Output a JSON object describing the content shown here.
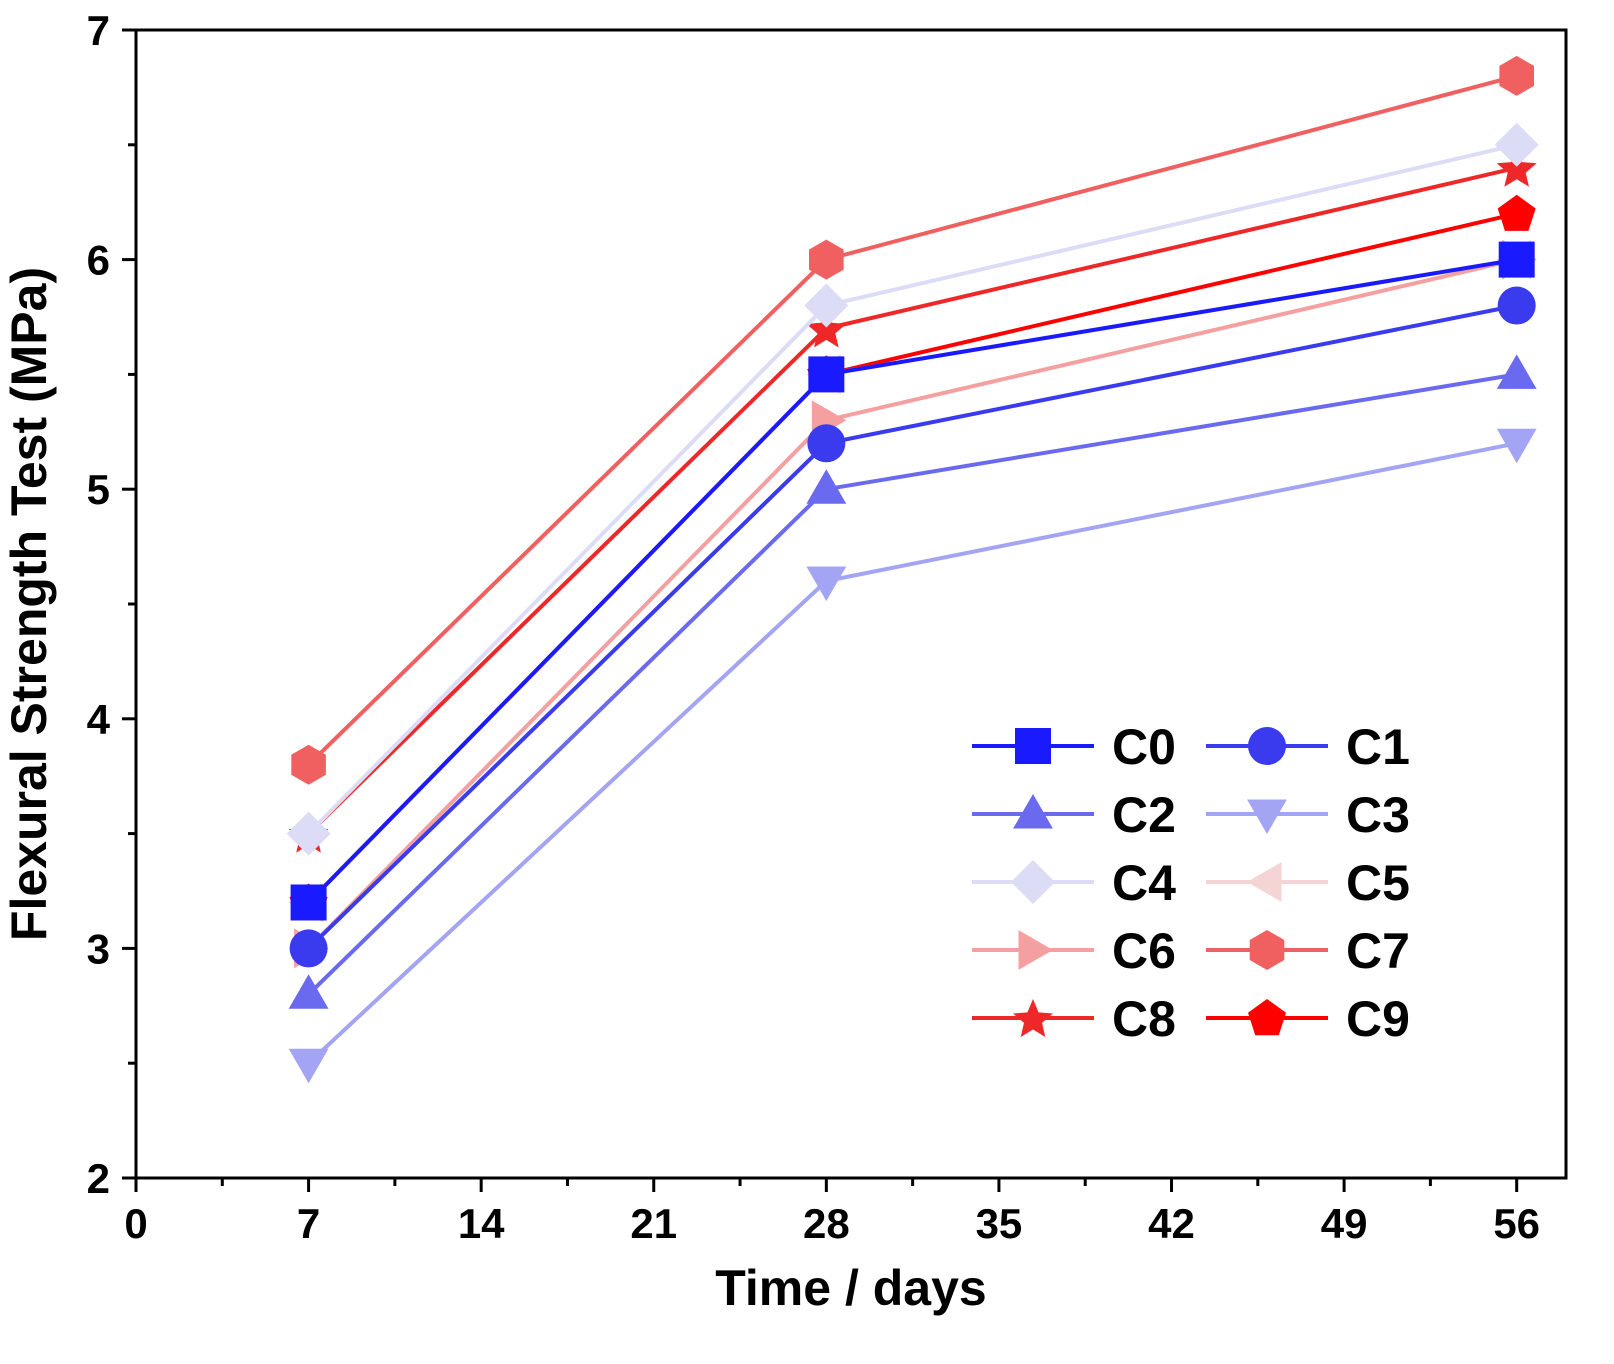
{
  "chart_data": {
    "type": "line",
    "xlabel": "Time / days",
    "ylabel": "Flexural Strength Test (MPa)",
    "xlim": [
      0,
      58
    ],
    "ylim": [
      2,
      7
    ],
    "xticks": [
      0,
      7,
      14,
      21,
      28,
      35,
      42,
      49,
      56
    ],
    "yticks": [
      2,
      3,
      4,
      5,
      6,
      7
    ],
    "xtick_labels": [
      "0",
      "7",
      "14",
      "21",
      "28",
      "35",
      "42",
      "49",
      "56"
    ],
    "ytick_labels": [
      "2",
      "3",
      "4",
      "5",
      "6",
      "7"
    ],
    "x": [
      7,
      28,
      56
    ],
    "legend_position": "lower-right",
    "grid": false,
    "series": [
      {
        "name": "C0",
        "values": [
          3.2,
          5.5,
          6.0
        ],
        "color": "#1a1aff",
        "marker": "square"
      },
      {
        "name": "C1",
        "values": [
          3.0,
          5.2,
          5.8
        ],
        "color": "#3a3aee",
        "marker": "circle"
      },
      {
        "name": "C2",
        "values": [
          2.8,
          5.0,
          5.5
        ],
        "color": "#6a6af0",
        "marker": "triangle-up"
      },
      {
        "name": "C3",
        "values": [
          2.5,
          4.6,
          5.2
        ],
        "color": "#a4a4f4",
        "marker": "triangle-down"
      },
      {
        "name": "C4",
        "values": [
          3.5,
          5.8,
          6.5
        ],
        "color": "#dcdcf6",
        "marker": "diamond"
      },
      {
        "name": "C5",
        "values": [
          3.2,
          5.5,
          6.0
        ],
        "color": "#f4d4d4",
        "marker": "triangle-left"
      },
      {
        "name": "C6",
        "values": [
          3.0,
          5.3,
          6.0
        ],
        "color": "#f5a0a0",
        "marker": "triangle-right"
      },
      {
        "name": "C7",
        "values": [
          3.8,
          6.0,
          6.8
        ],
        "color": "#f06060",
        "marker": "hexagon"
      },
      {
        "name": "C8",
        "values": [
          3.5,
          5.7,
          6.4
        ],
        "color": "#ee2828",
        "marker": "star"
      },
      {
        "name": "C9",
        "values": [
          3.2,
          5.5,
          6.2
        ],
        "color": "#ff0000",
        "marker": "pentagon"
      }
    ]
  }
}
